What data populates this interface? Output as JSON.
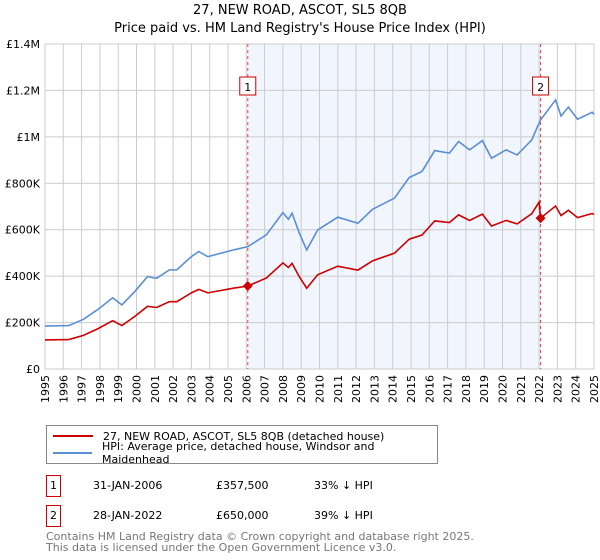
{
  "title": "27, NEW ROAD, ASCOT, SL5 8QB",
  "subtitle": "Price paid vs. HM Land Registry's House Price Index (HPI)",
  "chart_data": {
    "type": "line",
    "title": "27, NEW ROAD, ASCOT, SL5 8QB",
    "subtitle": "Price paid vs. HM Land Registry's House Price Index (HPI)",
    "xlabel": "",
    "ylabel": "",
    "unit": "GBP thousands",
    "xlim": [
      1995,
      2025
    ],
    "ylim": [
      0,
      1400
    ],
    "grid": true,
    "y_ticks": [
      {
        "v": 0,
        "label": "£0"
      },
      {
        "v": 200,
        "label": "£200K"
      },
      {
        "v": 400,
        "label": "£400K"
      },
      {
        "v": 600,
        "label": "£600K"
      },
      {
        "v": 800,
        "label": "£800K"
      },
      {
        "v": 1000,
        "label": "£1M"
      },
      {
        "v": 1200,
        "label": "£1.2M"
      },
      {
        "v": 1400,
        "label": "£1.4M"
      }
    ],
    "x_ticks": [
      "1995",
      "1996",
      "1997",
      "1998",
      "1999",
      "2000",
      "2001",
      "2002",
      "2003",
      "2004",
      "2005",
      "2006",
      "2007",
      "2008",
      "2009",
      "2010",
      "2011",
      "2012",
      "2013",
      "2014",
      "2015",
      "2016",
      "2017",
      "2018",
      "2019",
      "2020",
      "2021",
      "2022",
      "2023",
      "2024",
      "2025"
    ],
    "x": [
      1995.0,
      1996.3,
      1997.1,
      1997.9,
      1998.7,
      1999.2,
      1999.9,
      2000.6,
      2001.1,
      2001.8,
      2002.2,
      2003.0,
      2003.4,
      2003.9,
      2005.3,
      2006.08,
      2007.1,
      2008.0,
      2008.3,
      2008.5,
      2008.9,
      2009.3,
      2009.9,
      2011.0,
      2012.1,
      2012.9,
      2014.1,
      2014.9,
      2015.6,
      2016.3,
      2017.1,
      2017.6,
      2018.2,
      2018.9,
      2019.4,
      2020.2,
      2020.8,
      2021.6,
      2022.0,
      2022.08,
      2022.9,
      2023.2,
      2023.6,
      2024.1,
      2024.9,
      2025.0
    ],
    "series": [
      {
        "name": "27, NEW ROAD, ASCOT, SL5 8QB (detached house)",
        "color": "#cc0000",
        "values": [
          125,
          127,
          145,
          174,
          208,
          187,
          226,
          270,
          265,
          290,
          290,
          328,
          343,
          328,
          348,
          357.5,
          392,
          457,
          437,
          455,
          397,
          348,
          406,
          443,
          426,
          466,
          499,
          559,
          577,
          638,
          631,
          664,
          640,
          667,
          616,
          640,
          625,
          669,
          719,
          650,
          702,
          661,
          684,
          652,
          670,
          665
        ]
      },
      {
        "name": "HPI: Average price, detached house, Windsor and Maidenhead",
        "color": "#5b8fd4",
        "values": [
          185,
          187,
          214,
          257,
          307,
          276,
          333,
          398,
          391,
          427,
          427,
          484,
          506,
          484,
          513,
          527,
          578,
          674,
          645,
          671,
          585,
          513,
          599,
          654,
          628,
          688,
          736,
          825,
          851,
          941,
          930,
          980,
          944,
          984,
          908,
          944,
          922,
          987,
          1060,
          1073,
          1159,
          1090,
          1128,
          1076,
          1106,
          1097
        ]
      }
    ],
    "sales": [
      {
        "label": "1",
        "x": 2006.08,
        "value": 357.5
      },
      {
        "label": "2",
        "x": 2022.08,
        "value": 650
      }
    ],
    "shaded_range": [
      2006.08,
      2022.08
    ],
    "legend_position": "below"
  },
  "legend": [
    {
      "label": "27, NEW ROAD, ASCOT, SL5 8QB (detached house)",
      "color": "#cc0000"
    },
    {
      "label": "HPI: Average price, detached house, Windsor and Maidenhead",
      "color": "#5b8fd4"
    }
  ],
  "transactions": [
    {
      "num": "1",
      "date": "31-JAN-2006",
      "price": "£357,500",
      "hpi": "33% ↓ HPI"
    },
    {
      "num": "2",
      "date": "28-JAN-2022",
      "price": "£650,000",
      "hpi": "39% ↓ HPI"
    }
  ],
  "footer": {
    "line1": "Contains HM Land Registry data © Crown copyright and database right 2025.",
    "line2": "This data is licensed under the Open Government Licence v3.0."
  }
}
